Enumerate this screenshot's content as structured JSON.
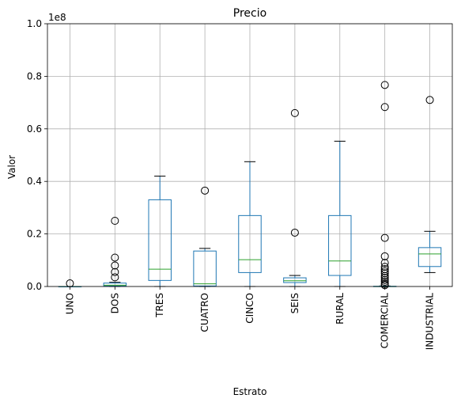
{
  "chart_data": {
    "type": "boxplot",
    "title": "Precio",
    "xlabel": "Estrato",
    "ylabel": "Valor",
    "y_offset_label": "1e8",
    "y_tick_scale": 100000000,
    "ylim": [
      0,
      100000000
    ],
    "y_ticks": [
      0,
      20000000,
      40000000,
      60000000,
      80000000,
      100000000
    ],
    "y_tick_labels": [
      "0.0",
      "0.2",
      "0.4",
      "0.6",
      "0.8",
      "1.0"
    ],
    "grid": true,
    "colors": {
      "box": "#1f77b4",
      "median": "#2ca02c",
      "grid": "#b0b0b0",
      "flier": "#000000"
    },
    "categories": [
      "UNO",
      "DOS",
      "TRES",
      "CUATRO",
      "CINCO",
      "SEIS",
      "RURAL",
      "COMERCIAL",
      "INDUSTRIAL"
    ],
    "boxes": [
      {
        "label": "UNO",
        "whisker_low": 0,
        "q1": 0,
        "median": 0,
        "q3": 0,
        "whisker_high": 0,
        "fliers": [
          1200000
        ]
      },
      {
        "label": "DOS",
        "whisker_low": 0,
        "q1": 200000,
        "median": 500000,
        "q3": 1300000,
        "whisker_high": 1600000,
        "fliers": [
          3500000,
          5500000,
          8000000,
          11000000,
          25000000
        ]
      },
      {
        "label": "TRES",
        "whisker_low": 0,
        "q1": 2300000,
        "median": 6600000,
        "q3": 33000000,
        "whisker_high": 42000000,
        "fliers": []
      },
      {
        "label": "CUATRO",
        "whisker_low": 0,
        "q1": 200000,
        "median": 1000000,
        "q3": 13500000,
        "whisker_high": 14500000,
        "fliers": [
          36500000
        ]
      },
      {
        "label": "CINCO",
        "whisker_low": 0,
        "q1": 5300000,
        "median": 10200000,
        "q3": 27000000,
        "whisker_high": 47500000,
        "fliers": []
      },
      {
        "label": "SEIS",
        "whisker_low": 0,
        "q1": 1500000,
        "median": 2200000,
        "q3": 3300000,
        "whisker_high": 4200000,
        "fliers": [
          20500000,
          66000000
        ]
      },
      {
        "label": "RURAL",
        "whisker_low": 0,
        "q1": 4200000,
        "median": 9700000,
        "q3": 27000000,
        "whisker_high": 55300000,
        "fliers": []
      },
      {
        "label": "COMERCIAL",
        "whisker_low": 0,
        "q1": 0,
        "median": 0,
        "q3": 100000,
        "whisker_high": 200000,
        "fliers": [
          500000,
          1000000,
          1800000,
          2500000,
          3300000,
          4000000,
          5000000,
          5800000,
          6600000,
          7500000,
          9000000,
          11500000,
          18500000,
          68300000,
          76700000
        ]
      },
      {
        "label": "INDUSTRIAL",
        "whisker_low": 5300000,
        "q1": 7600000,
        "median": 12400000,
        "q3": 14800000,
        "whisker_high": 21000000,
        "fliers": [
          71000000
        ]
      }
    ]
  }
}
